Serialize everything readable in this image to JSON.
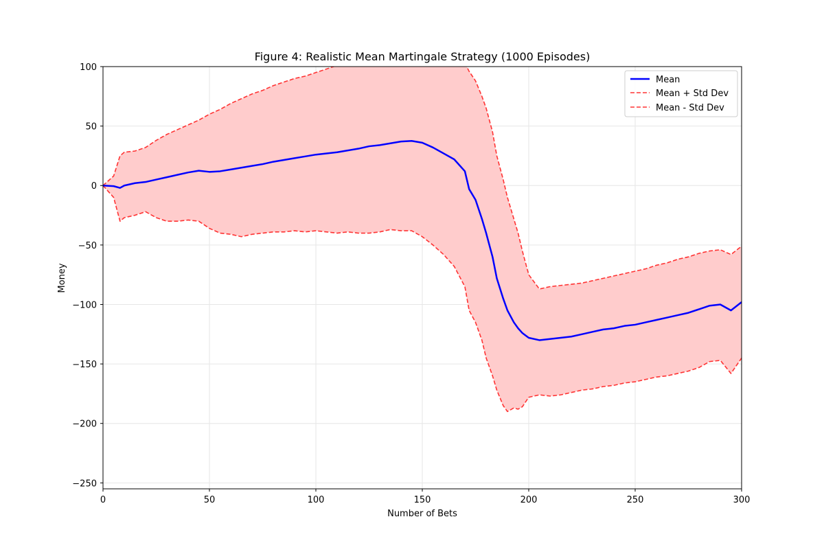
{
  "chart_data": {
    "type": "line",
    "title": "Figure 4: Realistic Mean Martingale Strategy (1000 Episodes)",
    "xlabel": "Number of Bets",
    "ylabel": "Money",
    "xlim": [
      0,
      300
    ],
    "ylim": [
      -255,
      100
    ],
    "xticks": [
      0,
      50,
      100,
      150,
      200,
      250,
      300
    ],
    "xtick_labels": [
      "0",
      "50",
      "100",
      "150",
      "200",
      "250",
      "300"
    ],
    "yticks": [
      100,
      50,
      0,
      -50,
      -100,
      -150,
      -200,
      -250
    ],
    "ytick_labels": [
      "100",
      "50",
      "0",
      "−50",
      "−100",
      "−150",
      "−200",
      "−250"
    ],
    "grid": true,
    "legend_position": "top-right",
    "colors": {
      "mean": "#0000ff",
      "std": "#ff3333",
      "fill": "#ffcccc"
    },
    "legend": [
      {
        "label": "Mean",
        "style": "solid",
        "color": "#0000ff"
      },
      {
        "label": "Mean + Std Dev",
        "style": "dashed",
        "color": "#ff3333"
      },
      {
        "label": "Mean - Std Dev",
        "style": "dashed",
        "color": "#ff3333"
      }
    ],
    "series": [
      {
        "name": "Mean",
        "x": [
          0,
          5,
          8,
          10,
          15,
          20,
          25,
          30,
          35,
          40,
          45,
          50,
          55,
          60,
          65,
          70,
          75,
          80,
          85,
          90,
          95,
          100,
          105,
          110,
          115,
          120,
          125,
          130,
          135,
          140,
          145,
          150,
          155,
          160,
          165,
          170,
          172,
          175,
          178,
          180,
          183,
          185,
          188,
          190,
          193,
          195,
          197,
          200,
          205,
          210,
          215,
          220,
          225,
          230,
          235,
          240,
          245,
          250,
          255,
          260,
          265,
          270,
          275,
          280,
          285,
          290,
          295,
          300
        ],
        "y": [
          0,
          -0.5,
          -2,
          0,
          2,
          3,
          5,
          7,
          9,
          11,
          12.5,
          11.5,
          12,
          13.5,
          15,
          16.5,
          18,
          20,
          21.5,
          23,
          24.5,
          26,
          27,
          28,
          29.5,
          31,
          33,
          34,
          35.5,
          37,
          37.5,
          36,
          32,
          27,
          22,
          12,
          -3,
          -12,
          -28,
          -40,
          -60,
          -78,
          -95,
          -105,
          -115,
          -120,
          -124,
          -128,
          -130,
          -129,
          -128,
          -127,
          -125,
          -123,
          -121,
          -120,
          -118,
          -117,
          -115,
          -113,
          -111,
          -109,
          -107,
          -104,
          -101,
          -100,
          -105,
          -98
        ]
      },
      {
        "name": "Mean + Std Dev",
        "x": [
          0,
          5,
          8,
          10,
          15,
          20,
          25,
          30,
          35,
          40,
          45,
          50,
          55,
          60,
          65,
          70,
          75,
          80,
          85,
          90,
          95,
          100,
          105,
          110,
          115,
          120,
          125,
          130,
          135,
          140,
          145,
          150,
          155,
          160,
          165,
          170,
          172,
          175,
          178,
          180,
          183,
          185,
          188,
          190,
          193,
          195,
          197,
          200,
          205,
          210,
          215,
          220,
          225,
          230,
          235,
          240,
          245,
          250,
          255,
          260,
          265,
          270,
          275,
          280,
          285,
          290,
          295,
          300
        ],
        "y": [
          0,
          8,
          25,
          28,
          29,
          32,
          38,
          43,
          47,
          51,
          55,
          60,
          64,
          69,
          73,
          77,
          80,
          84,
          87,
          90,
          92,
          95,
          98,
          101,
          103,
          106,
          109,
          112,
          115,
          117,
          119,
          119,
          118,
          114,
          110,
          103,
          96,
          88,
          75,
          65,
          45,
          25,
          5,
          -10,
          -28,
          -40,
          -55,
          -75,
          -87,
          -85,
          -84,
          -83,
          -82,
          -80,
          -78,
          -76,
          -74,
          -72,
          -70,
          -67,
          -65,
          -62,
          -60,
          -57,
          -55,
          -54,
          -58,
          -51
        ]
      },
      {
        "name": "Mean - Std Dev",
        "x": [
          0,
          5,
          8,
          10,
          15,
          20,
          25,
          30,
          35,
          40,
          45,
          50,
          55,
          60,
          65,
          70,
          75,
          80,
          85,
          90,
          95,
          100,
          105,
          110,
          115,
          120,
          125,
          130,
          135,
          140,
          145,
          150,
          155,
          160,
          165,
          170,
          172,
          175,
          178,
          180,
          183,
          185,
          188,
          190,
          193,
          195,
          197,
          200,
          205,
          210,
          215,
          220,
          225,
          230,
          235,
          240,
          245,
          250,
          255,
          260,
          265,
          270,
          275,
          280,
          285,
          290,
          295,
          300
        ],
        "y": [
          0,
          -10,
          -30,
          -27,
          -25,
          -22,
          -27,
          -30,
          -30,
          -29,
          -30,
          -36,
          -40,
          -41,
          -43,
          -41,
          -40,
          -39,
          -39,
          -38,
          -39,
          -38,
          -39,
          -40,
          -39,
          -40,
          -40,
          -39,
          -37,
          -38,
          -38,
          -43,
          -50,
          -58,
          -68,
          -85,
          -105,
          -115,
          -130,
          -145,
          -160,
          -172,
          -185,
          -190,
          -187,
          -188,
          -186,
          -178,
          -176,
          -177,
          -176,
          -174,
          -172,
          -171,
          -169,
          -168,
          -166,
          -165,
          -163,
          -161,
          -160,
          -158,
          -156,
          -153,
          -148,
          -147,
          -158,
          -145
        ]
      }
    ]
  }
}
